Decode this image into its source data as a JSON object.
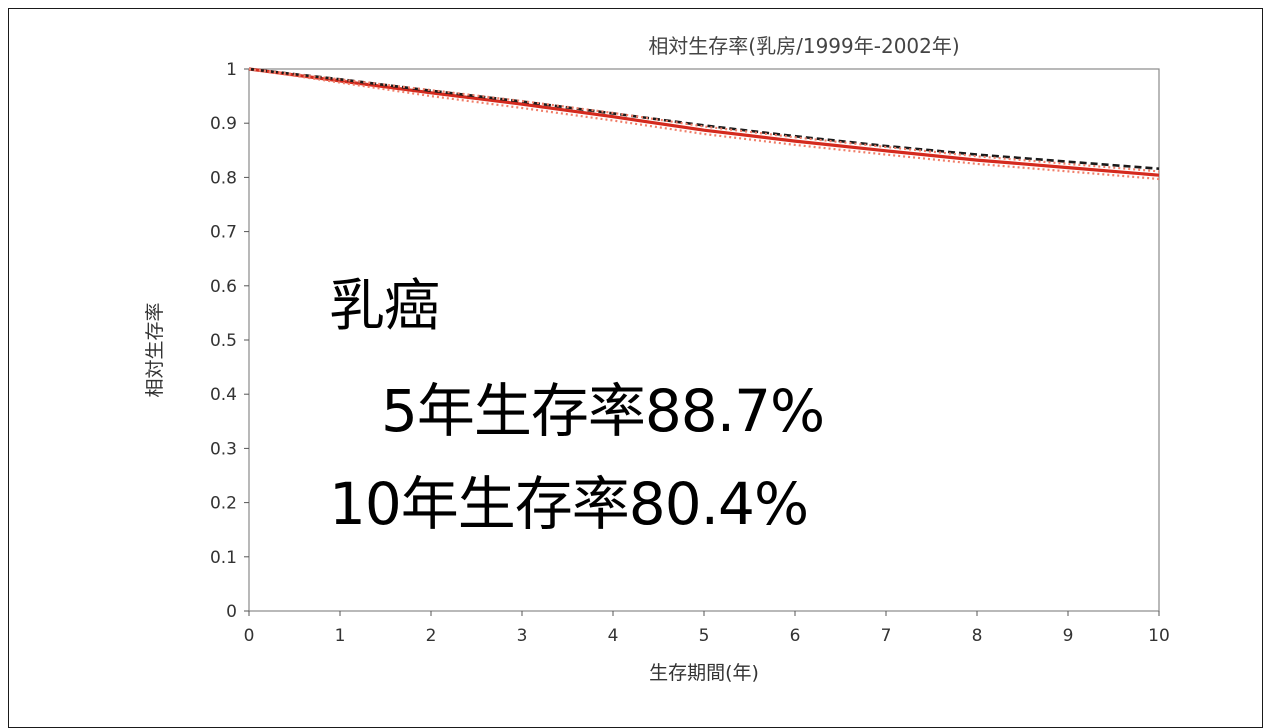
{
  "chart_data": {
    "type": "line",
    "title": "相対生存率(乳房/1999年-2002年)",
    "xlabel": "生存期間(年)",
    "ylabel": "相対生存率",
    "xlim": [
      0,
      10
    ],
    "ylim": [
      0,
      1
    ],
    "x_ticks": [
      "0",
      "1",
      "2",
      "3",
      "4",
      "5",
      "6",
      "7",
      "8",
      "9",
      "10"
    ],
    "y_ticks": [
      "0",
      "0.1",
      "0.2",
      "0.3",
      "0.4",
      "0.5",
      "0.6",
      "0.7",
      "0.8",
      "0.9",
      "1"
    ],
    "grid": true,
    "series": [
      {
        "style": "solid",
        "color": "#d42a1e",
        "x": [
          0,
          1,
          2,
          3,
          4,
          5,
          6,
          7,
          8,
          9,
          10
        ],
        "y": [
          1.0,
          0.978,
          0.956,
          0.935,
          0.912,
          0.887,
          0.867,
          0.849,
          0.832,
          0.818,
          0.804
        ]
      },
      {
        "style": "dashed",
        "color": "#1a1a1a",
        "x": [
          0,
          1,
          2,
          3,
          4,
          5,
          6,
          7,
          8,
          9,
          10
        ],
        "y": [
          1.0,
          0.981,
          0.96,
          0.94,
          0.918,
          0.896,
          0.876,
          0.858,
          0.842,
          0.829,
          0.816
        ]
      },
      {
        "style": "dotted",
        "color": "#f07f6a",
        "x": [
          0,
          1,
          2,
          3,
          4,
          5,
          6,
          7,
          8,
          9,
          10
        ],
        "y": [
          1.0,
          0.975,
          0.95,
          0.928,
          0.905,
          0.88,
          0.86,
          0.842,
          0.825,
          0.811,
          0.797
        ]
      },
      {
        "style": "dotted",
        "color": "#f07f6a",
        "x": [
          0,
          1,
          2,
          3,
          4,
          5,
          6,
          7,
          8,
          9,
          10
        ],
        "y": [
          1.0,
          0.981,
          0.961,
          0.941,
          0.919,
          0.894,
          0.874,
          0.856,
          0.839,
          0.825,
          0.811
        ]
      }
    ]
  },
  "overlay": {
    "title": "乳癌",
    "line1": "5年生存率88.7%",
    "line2": "10年生存率80.4%"
  }
}
